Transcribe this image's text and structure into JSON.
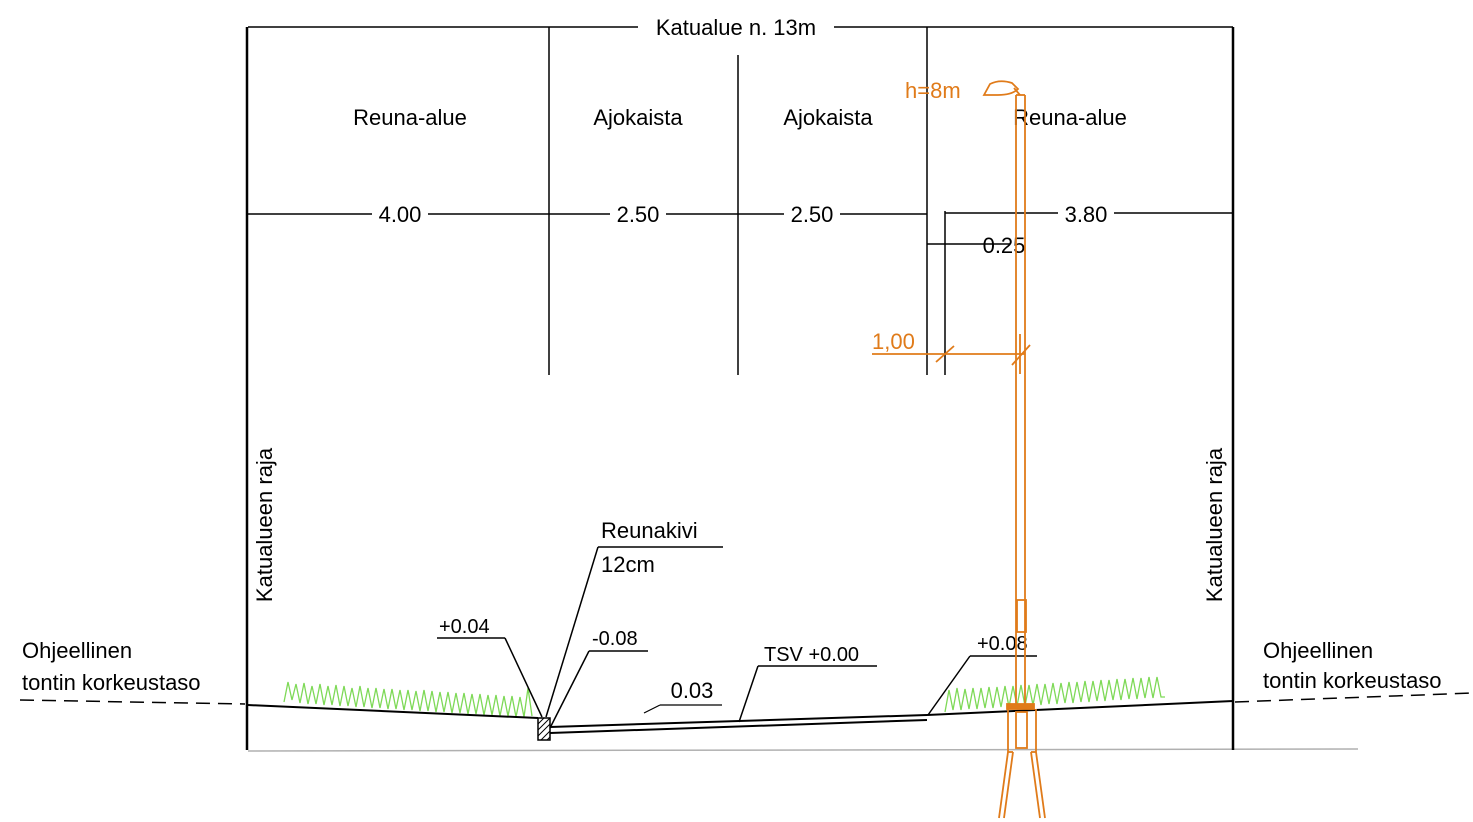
{
  "colors": {
    "line": "#000000",
    "lamp": "#E07B1A",
    "grass": "#7ED957",
    "ground": "#B0B0B0"
  },
  "title": "Katualue n. 13m",
  "zones": [
    {
      "label": "Reuna-alue"
    },
    {
      "label": "Ajokaista"
    },
    {
      "label": "Ajokaista"
    },
    {
      "label": "Reuna-alue"
    }
  ],
  "dimensions": {
    "d1": "4.00",
    "d2": "2.50",
    "d3": "2.50",
    "d4": "3.80",
    "d5": "0.25",
    "lamp_offset": "1,00"
  },
  "boundary_label": "Katualueen raja",
  "lamp_height": "h=8m",
  "curb": {
    "name": "Reunakivi",
    "size": "12cm"
  },
  "levels": {
    "left_edge": "+0.04",
    "gutter": "-0.08",
    "slope": "0.03",
    "road": "TSV +0.00",
    "right_edge": "+0.08"
  },
  "plot_level": {
    "line1": "Ohjeellinen",
    "line2": "tontin korkeustaso"
  }
}
